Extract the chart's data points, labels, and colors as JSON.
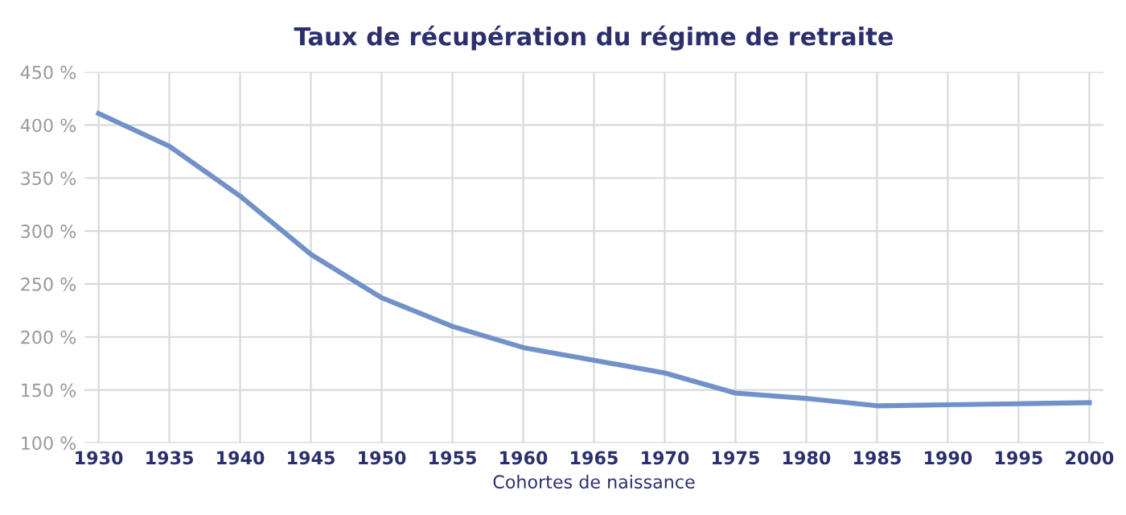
{
  "chart_data": {
    "type": "line",
    "title": "Taux de récupération du régime de retraite",
    "xlabel": "Cohortes de naissance",
    "x": [
      1930,
      1935,
      1940,
      1945,
      1950,
      1955,
      1960,
      1965,
      1970,
      1975,
      1980,
      1985,
      1990,
      1995,
      2000
    ],
    "series": [
      {
        "color": "#7191c8",
        "values": [
          411,
          380,
          333,
          278,
          237,
          210,
          190,
          178,
          166,
          147,
          142,
          135,
          136,
          137,
          138
        ]
      }
    ],
    "xlim": [
      1929,
      2001
    ],
    "xticks": [
      1930,
      1935,
      1940,
      1945,
      1950,
      1955,
      1960,
      1965,
      1970,
      1975,
      1980,
      1985,
      1990,
      1995,
      2000
    ],
    "ylim": [
      100,
      450
    ],
    "yticks": [
      {
        "value": 100,
        "label": "100 %"
      },
      {
        "value": 150,
        "label": "150 %"
      },
      {
        "value": 200,
        "label": "200 %"
      },
      {
        "value": 250,
        "label": "250 %"
      },
      {
        "value": 300,
        "label": "300 %"
      },
      {
        "value": 350,
        "label": "350 %"
      },
      {
        "value": 400,
        "label": "400 %"
      },
      {
        "value": 450,
        "label": "450 %"
      }
    ],
    "grid": true,
    "marker": "none",
    "line_style": "solid"
  }
}
